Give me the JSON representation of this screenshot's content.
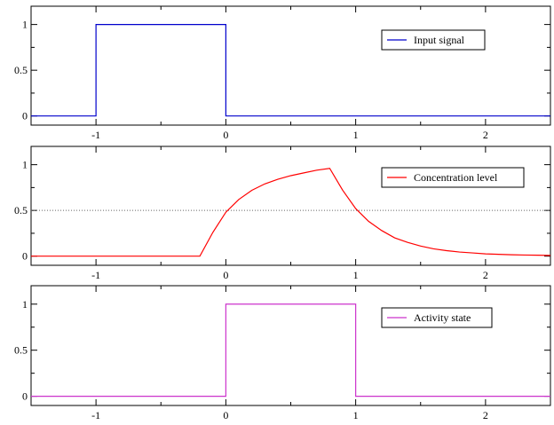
{
  "chart_data": [
    {
      "type": "line",
      "xlim": [
        -1.5,
        2.5
      ],
      "ylim": [
        -0.1,
        1.2
      ],
      "xticks": [
        -1,
        0,
        1,
        2
      ],
      "xtick_labels": [
        "-1",
        "0",
        "1",
        "2"
      ],
      "yticks": [
        0,
        0.5,
        1
      ],
      "ytick_labels": [
        "0",
        "0.5",
        "1"
      ],
      "grid": false,
      "legend_position": "top-right",
      "series": [
        {
          "name": "Input signal",
          "color": "#0000cc",
          "x": [
            -1.5,
            -1,
            -1,
            0,
            0,
            2.5
          ],
          "y": [
            0,
            0,
            1,
            1,
            0,
            0
          ]
        }
      ]
    },
    {
      "type": "line",
      "xlim": [
        -1.5,
        2.5
      ],
      "ylim": [
        -0.1,
        1.2
      ],
      "xticks": [
        -1,
        0,
        1,
        2
      ],
      "xtick_labels": [
        "-1",
        "0",
        "1",
        "2"
      ],
      "yticks": [
        0,
        0.5,
        1
      ],
      "ytick_labels": [
        "0",
        "0.5",
        "1"
      ],
      "grid": false,
      "legend_position": "top-right",
      "reference_line": {
        "y": 0.5,
        "style": "dotted",
        "color": "#666666"
      },
      "series": [
        {
          "name": "Concentration level",
          "color": "#ff0000",
          "x": [
            -1.5,
            -0.2,
            -0.1,
            0,
            0.1,
            0.2,
            0.3,
            0.4,
            0.5,
            0.6,
            0.7,
            0.8,
            0.9,
            1.0,
            1.1,
            1.2,
            1.3,
            1.4,
            1.5,
            1.6,
            1.7,
            1.8,
            1.9,
            2.0,
            2.1,
            2.2,
            2.3,
            2.4,
            2.5
          ],
          "y": [
            0,
            0,
            0.26,
            0.48,
            0.62,
            0.72,
            0.79,
            0.84,
            0.88,
            0.91,
            0.94,
            0.96,
            0.72,
            0.52,
            0.38,
            0.28,
            0.2,
            0.15,
            0.11,
            0.08,
            0.06,
            0.045,
            0.035,
            0.025,
            0.02,
            0.015,
            0.012,
            0.01,
            0.008
          ]
        }
      ]
    },
    {
      "type": "line",
      "xlim": [
        -1.5,
        2.5
      ],
      "ylim": [
        -0.1,
        1.2
      ],
      "xticks": [
        -1,
        0,
        1,
        2
      ],
      "xtick_labels": [
        "-1",
        "0",
        "1",
        "2"
      ],
      "yticks": [
        0,
        0.5,
        1
      ],
      "ytick_labels": [
        "0",
        "0.5",
        "1"
      ],
      "grid": false,
      "legend_position": "top-right",
      "series": [
        {
          "name": "Activity state",
          "color": "#cc33cc",
          "x": [
            -1.5,
            0,
            0,
            1,
            1,
            2.5
          ],
          "y": [
            0,
            0,
            1,
            1,
            0,
            0
          ]
        }
      ]
    }
  ]
}
